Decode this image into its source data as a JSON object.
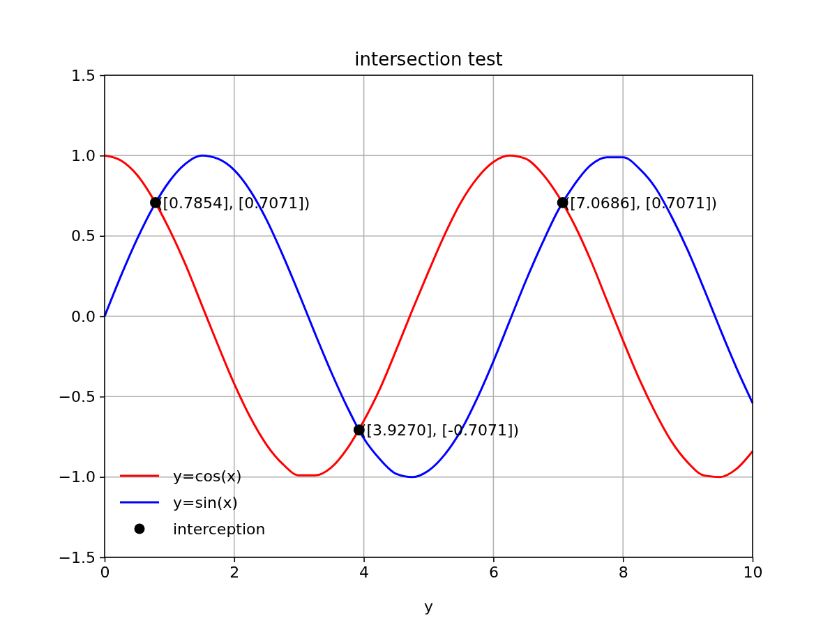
{
  "chart_data": {
    "type": "line",
    "title": "intersection test",
    "xlabel": "y",
    "xlim": [
      0,
      10
    ],
    "ylim": [
      -1.5,
      1.5
    ],
    "xticks": [
      0,
      2,
      4,
      6,
      8,
      10
    ],
    "yticks": [
      {
        "value": -1.5,
        "label": "−1.5"
      },
      {
        "value": -1,
        "label": "−1.0"
      },
      {
        "value": -0.5,
        "label": "−0.5"
      },
      {
        "value": 0,
        "label": "0.0"
      },
      {
        "value": 0.5,
        "label": "0.5"
      },
      {
        "value": 1,
        "label": "1.0"
      },
      {
        "value": 1.5,
        "label": "1.5"
      }
    ],
    "grid": true,
    "legend": "lower left",
    "marker": "none",
    "line_style": "solid",
    "x": [
      0,
      0.25,
      0.5,
      0.75,
      1,
      1.25,
      1.5,
      1.75,
      2,
      2.25,
      2.5,
      2.75,
      3,
      3.25,
      3.5,
      3.75,
      4,
      4.25,
      4.5,
      4.75,
      5,
      5.25,
      5.5,
      5.75,
      6,
      6.25,
      6.5,
      6.75,
      7,
      7.25,
      7.5,
      7.75,
      8,
      8.25,
      8.5,
      8.75,
      9,
      9.25,
      9.5,
      9.75,
      10
    ],
    "series": [
      {
        "name": "y=cos(x)",
        "color": "#ff0000",
        "values": [
          1,
          0.97,
          0.88,
          0.73,
          0.54,
          0.32,
          0.07,
          -0.18,
          -0.42,
          -0.63,
          -0.8,
          -0.92,
          -0.99,
          -0.99,
          -0.94,
          -0.82,
          -0.65,
          -0.45,
          -0.21,
          0.04,
          0.28,
          0.51,
          0.71,
          0.86,
          0.96,
          1,
          0.98,
          0.89,
          0.75,
          0.57,
          0.35,
          0.1,
          -0.15,
          -0.39,
          -0.6,
          -0.78,
          -0.91,
          -0.99,
          -1,
          -0.95,
          -0.84
        ]
      },
      {
        "name": "y=sin(x)",
        "color": "#0000ff",
        "values": [
          0,
          0.25,
          0.48,
          0.68,
          0.84,
          0.95,
          1,
          0.98,
          0.91,
          0.78,
          0.6,
          0.38,
          0.14,
          -0.11,
          -0.35,
          -0.57,
          -0.76,
          -0.89,
          -0.98,
          -1,
          -0.96,
          -0.86,
          -0.71,
          -0.51,
          -0.28,
          -0.03,
          0.22,
          0.45,
          0.66,
          0.82,
          0.94,
          0.99,
          0.99,
          0.92,
          0.8,
          0.62,
          0.41,
          0.17,
          -0.08,
          -0.32,
          -0.54
        ]
      },
      {
        "name": "interception",
        "type": "scatter",
        "color": "#000000",
        "marker": "circle",
        "x": [
          0.7854,
          3.927,
          7.0686
        ],
        "values": [
          0.7071,
          -0.7071,
          0.7071
        ],
        "value_labels": [
          "([0.7854], [0.7071])",
          "([3.9270], [-0.7071])",
          "([7.0686], [0.7071])"
        ]
      }
    ]
  }
}
